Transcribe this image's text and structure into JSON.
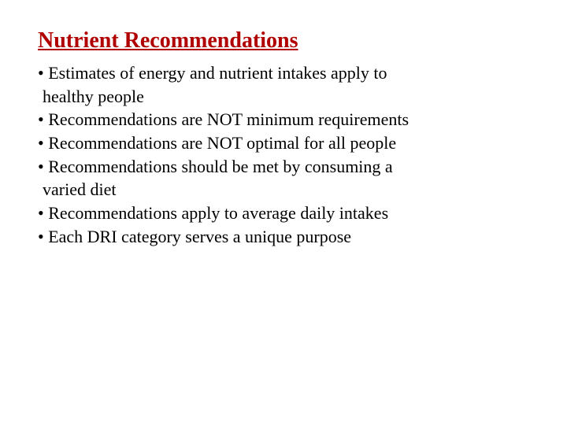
{
  "slide": {
    "title": "Nutrient Recommendations",
    "title_color": "#b00000",
    "body_color": "#000000",
    "background_color": "#ffffff",
    "title_fontsize": 28,
    "body_fontsize": 22,
    "font_family": "Times New Roman",
    "bullets": [
      {
        "line1": "• Estimates of energy and nutrient intakes apply to",
        "line2": " healthy people"
      },
      {
        "line1": "• Recommendations are NOT minimum requirements"
      },
      {
        "line1": "• Recommendations are NOT optimal for all people"
      },
      {
        "line1": "• Recommendations should be met by consuming a",
        "line2": "  varied diet"
      },
      {
        "line1": "• Recommendations apply to average daily intakes"
      },
      {
        "line1": "• Each DRI category serves a unique purpose"
      }
    ]
  }
}
